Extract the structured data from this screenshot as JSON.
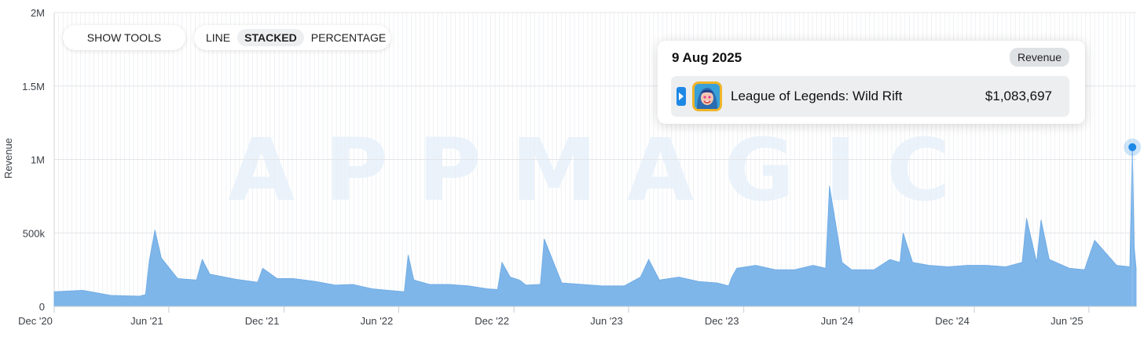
{
  "toolbar": {
    "show_tools": "SHOW TOOLS",
    "modes": [
      "LINE",
      "STACKED",
      "PERCENTAGE"
    ],
    "active_mode": "STACKED"
  },
  "watermark": "APPMAGIC",
  "tooltip": {
    "date": "9 Aug 2025",
    "metric": "Revenue",
    "app_name": "League of Legends: Wild Rift",
    "value": "$1,083,697"
  },
  "colors": {
    "area": "#7fb6ea",
    "marker": "#1e88e5",
    "grid": "#e3e5e8"
  },
  "chart_data": {
    "type": "area",
    "title": "",
    "xlabel": "",
    "ylabel": "Revenue",
    "ylim": [
      0,
      2000000
    ],
    "y_ticks": [
      0,
      500000,
      1000000,
      1500000,
      2000000
    ],
    "y_tick_labels": [
      "0",
      "500k",
      "1M",
      "1.5M",
      "2M"
    ],
    "x_range": [
      "2020-12-01",
      "2025-08-15"
    ],
    "x_ticks": [
      "2020-12-01",
      "2021-06-01",
      "2021-12-01",
      "2022-06-01",
      "2022-12-01",
      "2023-06-01",
      "2023-12-01",
      "2024-06-01",
      "2024-12-01",
      "2025-06-01"
    ],
    "x_tick_labels": [
      "Dec '20",
      "Jun '21",
      "Dec '21",
      "Jun '22",
      "Dec '22",
      "Jun '23",
      "Dec '23",
      "Jun '24",
      "Dec '24",
      "Jun '25"
    ],
    "highlight": {
      "date": "2025-08-09",
      "value": 1083697
    },
    "series": [
      {
        "name": "League of Legends: Wild Rift",
        "x": [
          "2020-12-01",
          "2021-01-15",
          "2021-03-01",
          "2021-04-15",
          "2021-04-25",
          "2021-05-01",
          "2021-05-10",
          "2021-05-20",
          "2021-06-15",
          "2021-07-15",
          "2021-07-24",
          "2021-08-05",
          "2021-09-15",
          "2021-10-20",
          "2021-10-28",
          "2021-11-20",
          "2021-12-15",
          "2022-01-20",
          "2022-02-20",
          "2022-03-20",
          "2022-04-20",
          "2022-05-15",
          "2022-06-10",
          "2022-06-16",
          "2022-06-25",
          "2022-07-20",
          "2022-08-20",
          "2022-09-20",
          "2022-10-20",
          "2022-11-05",
          "2022-11-12",
          "2022-11-25",
          "2022-12-10",
          "2022-12-20",
          "2023-01-12",
          "2023-01-18",
          "2023-02-15",
          "2023-03-20",
          "2023-04-20",
          "2023-05-25",
          "2023-06-20",
          "2023-07-03",
          "2023-07-20",
          "2023-08-20",
          "2023-09-20",
          "2023-10-20",
          "2023-11-07",
          "2023-11-12",
          "2023-11-20",
          "2023-12-20",
          "2024-01-20",
          "2024-02-20",
          "2024-03-20",
          "2024-04-09",
          "2024-04-15",
          "2024-05-05",
          "2024-05-20",
          "2024-06-25",
          "2024-07-20",
          "2024-08-05",
          "2024-08-10",
          "2024-08-25",
          "2024-09-20",
          "2024-10-20",
          "2024-11-20",
          "2024-12-20",
          "2025-01-20",
          "2025-02-15",
          "2025-02-22",
          "2025-03-10",
          "2025-03-17",
          "2025-03-30",
          "2025-05-01",
          "2025-05-25",
          "2025-06-10",
          "2025-07-15",
          "2025-08-05",
          "2025-08-09",
          "2025-08-12",
          "2025-08-15"
        ],
        "values": [
          100000,
          110000,
          75000,
          70000,
          80000,
          310000,
          520000,
          330000,
          190000,
          180000,
          320000,
          220000,
          185000,
          165000,
          260000,
          190000,
          190000,
          170000,
          145000,
          150000,
          120000,
          110000,
          100000,
          350000,
          180000,
          150000,
          150000,
          140000,
          120000,
          115000,
          300000,
          200000,
          180000,
          145000,
          150000,
          460000,
          160000,
          150000,
          140000,
          140000,
          200000,
          320000,
          180000,
          200000,
          170000,
          160000,
          140000,
          200000,
          260000,
          280000,
          250000,
          250000,
          280000,
          260000,
          820000,
          300000,
          250000,
          250000,
          320000,
          300000,
          500000,
          300000,
          280000,
          270000,
          280000,
          280000,
          270000,
          300000,
          600000,
          300000,
          590000,
          320000,
          260000,
          250000,
          450000,
          280000,
          270000,
          1083697,
          400000,
          260000
        ]
      }
    ]
  }
}
